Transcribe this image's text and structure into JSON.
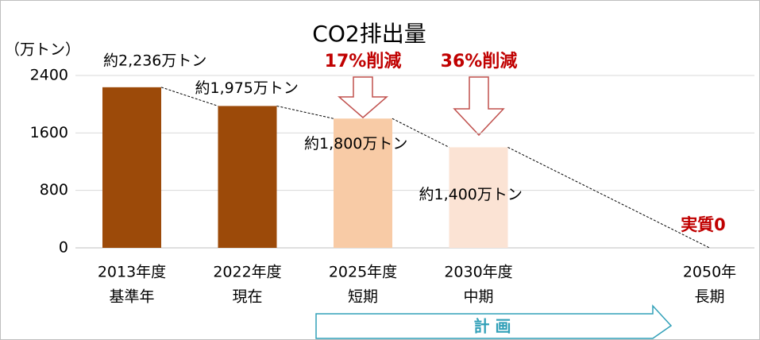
{
  "chart_data": {
    "type": "bar",
    "title": "CO2排出量",
    "y_axis_label": "（万トン）",
    "categories": [
      [
        "2013年度",
        "基準年"
      ],
      [
        "2022年度",
        "現在"
      ],
      [
        "2025年度",
        "短期"
      ],
      [
        "2030年度",
        "中期"
      ],
      null,
      [
        "2050年",
        "長期"
      ]
    ],
    "values": [
      2236,
      1975,
      1800,
      1400,
      null,
      0
    ],
    "value_labels": [
      "約2,236万トン",
      "約1,975万トン",
      "約1,800万トン",
      "約1,400万トン",
      null,
      "実質0"
    ],
    "colors": [
      "#9c4a09",
      "#9c4a09",
      "#f8cba6",
      "#fbe3d4",
      null,
      "#c00000"
    ],
    "ylim": [
      0,
      2400
    ],
    "yticks": [
      0,
      800,
      1600,
      2400
    ],
    "grid": true,
    "annotations": [
      "17%削減",
      "36%削減"
    ],
    "plan_label": "計 画"
  }
}
